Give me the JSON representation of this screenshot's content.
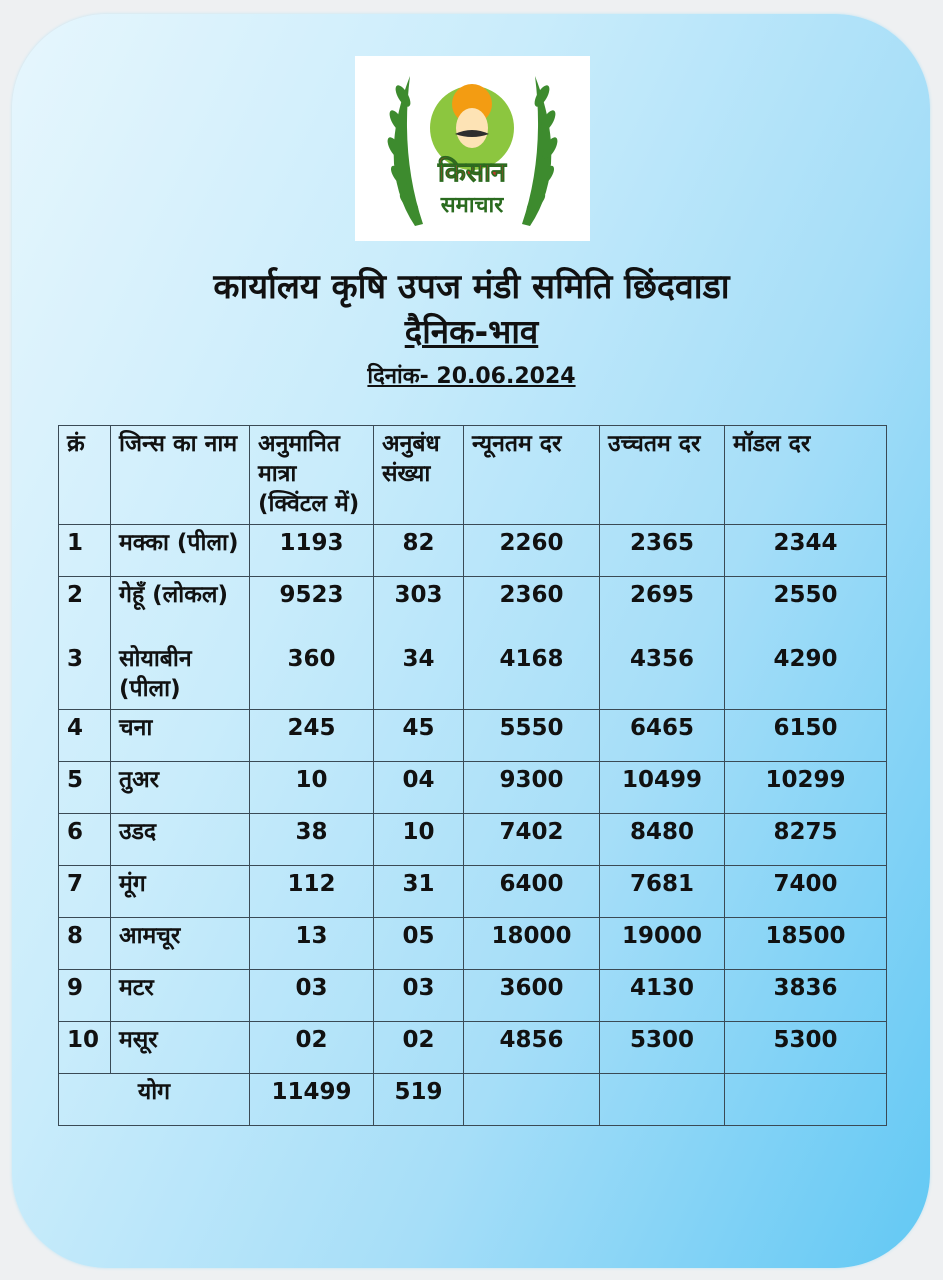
{
  "logo": {
    "line1": "किसान",
    "line2": "समाचार"
  },
  "header": {
    "title": "कार्यालय कृषि उपज मंडी समिति छिंदवाडा",
    "subtitle": "दैनिक-भाव",
    "date": "दिनांक- 20.06.2024"
  },
  "table": {
    "columns": [
      "क्रं",
      "जिन्स का नाम",
      "अनुमानित मात्रा (क्विंटल में)",
      "अनुबंध संख्या",
      "न्यूनतम दर",
      "उच्चतम दर",
      "मॉडल दर"
    ],
    "rows": [
      [
        "1",
        "मक्का (पीला)",
        "1193",
        "82",
        "2260",
        "2365",
        "2344"
      ],
      [
        "2",
        "गेहूँ (लोकल)",
        "9523",
        "303",
        "2360",
        "2695",
        "2550"
      ],
      [
        "3",
        "सोयाबीन (पीला)",
        "360",
        "34",
        "4168",
        "4356",
        "4290"
      ],
      [
        "4",
        "चना",
        "245",
        "45",
        "5550",
        "6465",
        "6150"
      ],
      [
        "5",
        "तुअर",
        "10",
        "04",
        "9300",
        "10499",
        "10299"
      ],
      [
        "6",
        "उडद",
        "38",
        "10",
        "7402",
        "8480",
        "8275"
      ],
      [
        "7",
        "मूंग",
        "112",
        "31",
        "6400",
        "7681",
        "7400"
      ],
      [
        "8",
        "आमचूर",
        "13",
        "05",
        "18000",
        "19000",
        "18500"
      ],
      [
        "9",
        "मटर",
        "03",
        "03",
        "3600",
        "4130",
        "3836"
      ],
      [
        "10",
        "मसूर",
        "02",
        "02",
        "4856",
        "5300",
        "5300"
      ]
    ],
    "total": {
      "label": "योग",
      "quantity": "11499",
      "contracts": "519"
    }
  }
}
